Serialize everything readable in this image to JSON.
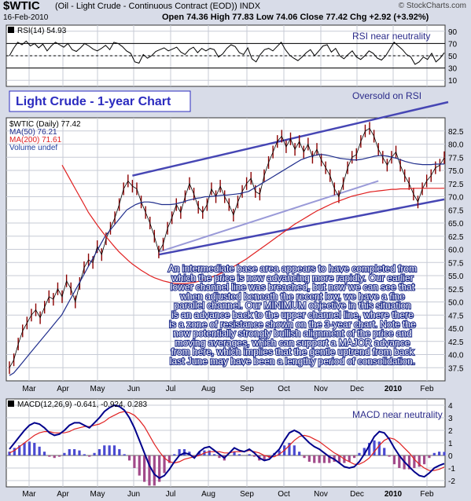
{
  "header": {
    "symbol": "$WTIC",
    "description": "(Oil - Light Crude - Continuous Contract (EOD))  INDX",
    "watermark": "© StockCharts.com",
    "date": "16-Feb-2010",
    "ohlc": "Open 74.36  High 77.83  Low 74.06  Close 77.42  Chg +2.92 (+3.92%)"
  },
  "colors": {
    "price": "#000000",
    "ma50": "#1f2d8c",
    "ma200": "#e02020",
    "channel": "#4646b4",
    "lower_inner": "#9a9ad8",
    "macd": "#00008b",
    "signal": "#e02020",
    "hist": "#4a4ad0",
    "annotation": "#2b2bbf"
  },
  "chart_data": [
    {
      "type": "line",
      "panel": "RSI",
      "legend": "RSI(14) 54.93",
      "ylim": [
        0,
        100
      ],
      "ticks": [
        "90",
        "70",
        "50",
        "30",
        "10"
      ],
      "tick_values": [
        90,
        70,
        50,
        30,
        10
      ],
      "x_month_labels": [
        "Mar",
        "Apr",
        "May",
        "Jun",
        "Jul",
        "Aug",
        "Sep",
        "Oct",
        "Nov",
        "Dec",
        "2010",
        "Feb"
      ],
      "annotations": [
        "RSI near neutrality",
        "Oversold on RSI"
      ],
      "values": [
        50,
        62,
        72,
        68,
        74,
        66,
        70,
        63,
        69,
        58,
        66,
        72,
        68,
        64,
        70,
        60,
        57,
        63,
        70,
        66,
        61,
        58,
        62,
        67,
        60,
        72,
        70,
        65,
        58,
        54,
        40,
        38,
        52,
        46,
        50,
        57,
        60,
        63,
        58,
        61,
        64,
        56,
        52,
        60,
        64,
        55,
        62,
        58,
        62,
        60,
        48,
        53,
        62,
        68,
        65,
        55,
        52,
        63,
        45,
        40,
        52,
        60,
        62,
        58,
        65,
        72,
        60,
        51,
        46,
        42,
        48,
        55,
        60,
        50,
        58,
        66,
        68,
        56,
        62,
        50,
        45,
        52,
        58,
        48,
        44,
        50,
        58,
        54,
        46,
        43,
        50,
        61,
        72,
        66,
        60,
        52,
        48,
        36,
        40,
        48,
        44,
        54,
        40,
        46,
        54.93
      ]
    },
    {
      "type": "line",
      "panel": "Price",
      "title": "Light Crude - 1-year Chart",
      "ylim": [
        35,
        85
      ],
      "ticks": [
        "82.5",
        "80.0",
        "77.5",
        "75.0",
        "72.5",
        "70.0",
        "67.5",
        "65.0",
        "62.5",
        "60.0",
        "57.5",
        "55.0",
        "52.5",
        "50.0",
        "47.5",
        "45.0",
        "42.5",
        "40.0",
        "37.5"
      ],
      "tick_values": [
        82.5,
        80,
        77.5,
        75,
        72.5,
        70,
        67.5,
        65,
        62.5,
        60,
        57.5,
        55,
        52.5,
        50,
        47.5,
        45,
        42.5,
        40,
        37.5
      ],
      "legend": [
        "$WTIC (Daily) 77.42",
        "MA(50) 76.21",
        "MA(200) 71.61",
        "Volume undef"
      ],
      "annotation_text": [
        "An intermediate base area appears to have completed from",
        "which the price is now advancing more rapidly. Our earlier",
        "lower channel line was breached, but now we can see that",
        "when adjusted beneath the recent low, we have a fine",
        "parallel channel. Our MINIMUM objective in this situation",
        "is an advance back to the upper channel line, where there",
        "is a zone of resistance shown on the 3-year chart. Note the",
        "now potentially strongly bullish alignment of the price and",
        "moving averages, which can support a MAJOR advance",
        "from here, which implies that the gentle uptrend from back",
        "last June may have been a lengthy period of consolidation."
      ],
      "series": [
        {
          "name": "$WTIC (Daily) 77.42",
          "style": "bar",
          "values": [
            37.5,
            39,
            42,
            44.5,
            46,
            47.5,
            48.5,
            47,
            49,
            51,
            50.5,
            52.5,
            51,
            54,
            52.5,
            50,
            53.5,
            56.5,
            58,
            57.5,
            60.5,
            59,
            62,
            64,
            66,
            68.5,
            71.5,
            73,
            72,
            71.5,
            69,
            67,
            65,
            62.5,
            59.5,
            61,
            64,
            66,
            68.5,
            67,
            70,
            72.5,
            70.5,
            68,
            67,
            68.5,
            71.5,
            70,
            72,
            70,
            68.5,
            66.5,
            69,
            71,
            72.5,
            73.5,
            71,
            70.5,
            74,
            76.5,
            78.5,
            80.5,
            81.5,
            79.5,
            81,
            79,
            80.5,
            78.5,
            80,
            77.5,
            79,
            77,
            75.5,
            74,
            71.5,
            70,
            72.5,
            75.5,
            77.5,
            78,
            80.5,
            82.5,
            83,
            81.5,
            79,
            77.5,
            76,
            77.5,
            78.5,
            76,
            74,
            72.5,
            70.5,
            69,
            71.5,
            73,
            74,
            75.5,
            76,
            77.42
          ]
        },
        {
          "name": "MA(50) 76.21",
          "values": [
            36,
            36.5,
            37.5,
            38.5,
            39.5,
            40.5,
            41.5,
            42.5,
            43.5,
            44.5,
            45.5,
            46.5,
            47.5,
            49,
            50.5,
            52,
            53.5,
            55,
            56.5,
            58,
            59.5,
            61,
            62.5,
            63.5,
            64.5,
            65.5,
            66.5,
            67.5,
            68,
            68.5,
            68.8,
            69,
            69,
            68.9,
            68.7,
            68.5,
            68.5,
            68.5,
            68.6,
            68.8,
            69,
            69.3,
            69.5,
            69.7,
            69.8,
            70,
            70,
            70.1,
            70.2,
            70.3,
            70.3,
            70.4,
            70.5,
            70.6,
            70.8,
            71,
            71.5,
            72,
            72.5,
            73,
            73.5,
            74,
            74.5,
            75,
            75.5,
            76,
            76.5,
            77,
            77.3,
            77.6,
            77.8,
            78,
            78,
            77.9,
            77.7,
            77.5,
            77.3,
            77.2,
            77.1,
            77,
            77,
            77.1,
            77.3,
            77.5,
            77.7,
            77.8,
            77.8,
            77.7,
            77.5,
            77.3,
            77,
            76.7,
            76.5,
            76.3,
            76.2,
            76.1,
            76.1,
            76.1,
            76.2,
            76.2,
            76.21
          ]
        },
        {
          "name": "MA(200) 71.61",
          "values": [
            76,
            74.5,
            73,
            71.5,
            70,
            68.5,
            67,
            65.8,
            64.6,
            63.5,
            62.4,
            61.4,
            60.4,
            59.5,
            58.7,
            57.9,
            57.2,
            56.6,
            56,
            55.5,
            55,
            54.6,
            54.3,
            54,
            53.8,
            53.6,
            53.5,
            53.5,
            53.5,
            53.6,
            53.7,
            53.9,
            54.1,
            54.4,
            54.7,
            55,
            55.4,
            55.8,
            56.2,
            56.7,
            57.2,
            57.7,
            58.2,
            58.8,
            59.4,
            60,
            60.6,
            61.2,
            61.8,
            62.4,
            63,
            63.6,
            64.2,
            64.8,
            65.3,
            65.8,
            66.3,
            66.8,
            67.3,
            67.7,
            68.1,
            68.5,
            68.9,
            69.2,
            69.5,
            69.8,
            70.1,
            70.3,
            70.5,
            70.7,
            70.9,
            71,
            71.1,
            71.2,
            71.3,
            71.4,
            71.4,
            71.5,
            71.5,
            71.5,
            71.6,
            71.6,
            71.6,
            71.6,
            71.6,
            71.6,
            71.6,
            71.61
          ]
        }
      ]
    },
    {
      "type": "line",
      "panel": "MACD",
      "legend": "MACD(12,26,9) -0.641, -0.924, 0.283",
      "ylim": [
        -2.5,
        4.5
      ],
      "ticks": [
        "4",
        "3",
        "2",
        "1",
        "0",
        "-1",
        "-2"
      ],
      "tick_values": [
        4,
        3,
        2,
        1,
        0,
        -1,
        -2
      ],
      "annotation": "MACD near neutrality",
      "series": [
        {
          "name": "MACD",
          "values": [
            0.5,
            1,
            1.5,
            2,
            2.4,
            2.6,
            2.5,
            2.2,
            1.8,
            1.6,
            1.7,
            2,
            2.4,
            2.6,
            2.6,
            2.4,
            2.2,
            2.6,
            3,
            3.5,
            3.8,
            4,
            3.9,
            3.6,
            3,
            2.2,
            1.2,
            0.2,
            -0.8,
            -1.5,
            -1.8,
            -1.6,
            -1.1,
            -0.5,
            0,
            0.2,
            0.1,
            -0.2,
            0.3,
            0.6,
            0.7,
            0.4,
            0.1,
            -0.2,
            0.2,
            0.6,
            0.4,
            0.3,
            0.5,
            0.2,
            -0.2,
            -0.4,
            -0.3,
            0.1,
            0.5,
            1.2,
            1.8,
            2,
            1.8,
            1.4,
            1,
            0.7,
            0.5,
            0.2,
            -0.1,
            -0.3,
            -0.6,
            -0.9,
            -1,
            -0.9,
            -0.5,
            0.1,
            0.8,
            1.5,
            1.9,
            1.8,
            1.3,
            0.6,
            0,
            -0.5,
            -0.9,
            -1.3,
            -1.6,
            -1.7,
            -1.4,
            -1,
            -0.8,
            -0.641
          ]
        },
        {
          "name": "Signal",
          "values": [
            0.2,
            0.4,
            0.7,
            1,
            1.3,
            1.6,
            1.8,
            1.9,
            1.9,
            1.8,
            1.8,
            1.8,
            1.9,
            2.1,
            2.2,
            2.3,
            2.3,
            2.4,
            2.5,
            2.7,
            3,
            3.2,
            3.4,
            3.5,
            3.4,
            3.2,
            2.8,
            2.3,
            1.6,
            0.9,
            0.3,
            -0.2,
            -0.5,
            -0.6,
            -0.5,
            -0.3,
            -0.2,
            -0.1,
            0,
            0.2,
            0.3,
            0.3,
            0.3,
            0.2,
            0.2,
            0.3,
            0.3,
            0.3,
            0.4,
            0.3,
            0.2,
            0,
            -0.1,
            -0.1,
            0.1,
            0.4,
            0.8,
            1.2,
            1.5,
            1.6,
            1.5,
            1.3,
            1.1,
            0.8,
            0.5,
            0.2,
            0,
            -0.3,
            -0.5,
            -0.7,
            -0.7,
            -0.5,
            -0.2,
            0.3,
            0.8,
            1.2,
            1.4,
            1.3,
            1,
            0.6,
            0.2,
            -0.3,
            -0.7,
            -1,
            -1.2,
            -1.2,
            -1.1,
            -0.924
          ]
        },
        {
          "name": "Histogram",
          "style": "bar",
          "values": [
            0.3,
            0.6,
            0.8,
            1,
            1.1,
            1,
            0.7,
            0.3,
            -0.1,
            -0.2,
            -0.1,
            0.2,
            0.5,
            0.5,
            0.4,
            0.1,
            -0.1,
            0.2,
            0.5,
            0.8,
            0.8,
            0.8,
            0.5,
            0.1,
            -0.4,
            -1,
            -1.6,
            -2.1,
            -2.4,
            -2.4,
            -2.1,
            -1.4,
            -0.6,
            0.1,
            0.5,
            0.5,
            0.3,
            -0.1,
            0.3,
            0.4,
            0.4,
            0.1,
            -0.2,
            -0.4,
            0,
            0.3,
            0.1,
            0,
            0.1,
            -0.1,
            -0.4,
            -0.4,
            -0.2,
            0.2,
            0.4,
            0.8,
            1,
            0.8,
            0.3,
            -0.2,
            -0.5,
            -0.6,
            -0.6,
            -0.6,
            -0.6,
            -0.5,
            -0.6,
            -0.6,
            -0.5,
            -0.2,
            0.2,
            0.6,
            1,
            1.2,
            1.1,
            0.6,
            -0.1,
            -0.7,
            -1,
            -1.1,
            -1.1,
            -1,
            -0.9,
            -0.7,
            -0.2,
            0.2,
            0.3,
            0.283
          ]
        }
      ]
    }
  ]
}
